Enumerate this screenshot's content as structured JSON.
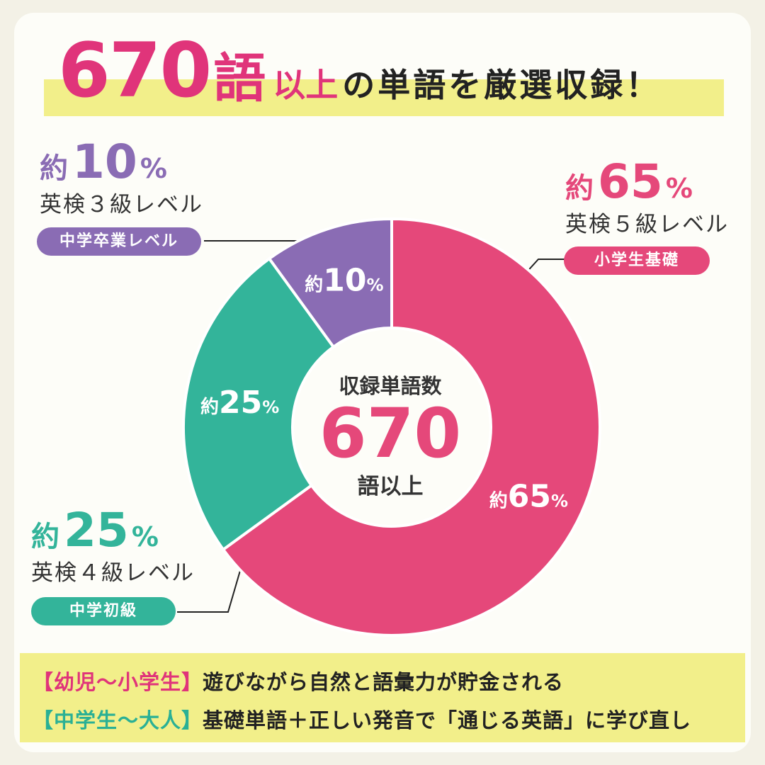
{
  "headline": {
    "number": "670",
    "go": "語",
    "ijo": "以上",
    "rest": "の単語を厳選収録！"
  },
  "levels": [
    {
      "yaku": "約",
      "num": "10",
      "per": "%",
      "eiken": "英検３級レベル",
      "pill": "中学卒業レベル",
      "color": "#8a6cb4"
    },
    {
      "yaku": "約",
      "num": "65",
      "per": "%",
      "eiken": "英検５級レベル",
      "pill": "小学生基礎",
      "color": "#e5487a"
    },
    {
      "yaku": "約",
      "num": "25",
      "per": "%",
      "eiken": "英検４級レベル",
      "pill": "中学初級",
      "color": "#33b49a"
    }
  ],
  "chart_data": {
    "type": "pie",
    "variant": "donut",
    "center": {
      "title": "収録単語数",
      "number": "670",
      "unit": "語以上"
    },
    "slices": [
      {
        "name": "英検５級レベル",
        "value": 65,
        "label_yaku": "約",
        "label_num": "65",
        "label_per": "%",
        "color": "#e5487a"
      },
      {
        "name": "英検４級レベル",
        "value": 25,
        "label_yaku": "約",
        "label_num": "25",
        "label_per": "%",
        "color": "#33b49a"
      },
      {
        "name": "英検３級レベル",
        "value": 10,
        "label_yaku": "約",
        "label_num": "10",
        "label_per": "%",
        "color": "#8a6cb4"
      }
    ]
  },
  "bottom": {
    "line1_tag": "【幼児〜小学生】",
    "line1_text": "遊びながら自然と語彙力が貯金される",
    "line2_tag": "【中学生〜大人】",
    "line2_text": "基礎単語＋正しい発音で「通じる英語」に学び直し"
  }
}
